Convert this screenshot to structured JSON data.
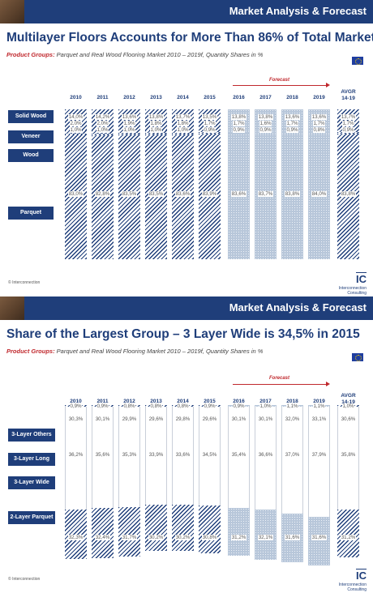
{
  "slide1": {
    "header": "Market Analysis & Forecast",
    "title": "Multilayer Floors Accounts for More Than 86% of Total Market",
    "subtitle_label": "Product Groups:",
    "subtitle_text": " Parquet and Real Wood Flooring Market 2010 – 2019f, Quantity Shares in %",
    "forecast_label": "Forecast",
    "footer": "© Interconnection",
    "logo_mark": "IC",
    "logo_name": "Interconnection",
    "logo_sub": "Consulting"
  },
  "slide2": {
    "header": "Market Analysis & Forecast",
    "title": "Share of the Largest Group – 3 Layer Wide is 34,5% in 2015",
    "subtitle_label": "Product Groups:",
    "subtitle_text": " Parquet and Real Wood Flooring Market 2010 – 2019f, Quantity Shares in %",
    "forecast_label": "Forecast",
    "footer": "© Interconnection",
    "logo_mark": "IC",
    "logo_name": "Interconnection",
    "logo_sub": "Consulting"
  },
  "chart_data": [
    {
      "type": "bar",
      "stacked": true,
      "percent": true,
      "categories": [
        "2010",
        "2011",
        "2012",
        "2013",
        "2014",
        "2015",
        "2016",
        "2017",
        "2018",
        "2019",
        "AVGR 14-19"
      ],
      "forecast_from": "2016",
      "series": [
        {
          "name": "Solid Wood",
          "values": [
            14.0,
            14.2,
            13.6,
            13.8,
            13.7,
            13.5,
            13.8,
            13.8,
            13.6,
            13.6,
            13.7
          ],
          "labels": [
            "14,0%",
            "14,2%",
            "13,6%",
            "13,8%",
            "13,7%",
            "13,5%",
            "13,8%",
            "13,8%",
            "13,6%",
            "13,6%",
            "13,7%"
          ]
        },
        {
          "name": "Veneer",
          "values": [
            2.0,
            2.0,
            1.9,
            1.8,
            1.8,
            1.7,
            1.7,
            1.6,
            1.7,
            1.7,
            1.7
          ],
          "labels": [
            "2,0%",
            "2,0%",
            "1,9%",
            "1,8%",
            "1,8%",
            "1,7%",
            "1,7%",
            "1,6%",
            "1,7%",
            "1,7%",
            "1,7%"
          ]
        },
        {
          "name": "Wood",
          "values": [
            1.0,
            1.0,
            1.0,
            1.0,
            1.0,
            0.9,
            0.9,
            0.9,
            0.9,
            0.8,
            0.9
          ],
          "labels": [
            "1,0%",
            "1,0%",
            "1,0%",
            "1,0%",
            "1,0%",
            "0,9%",
            "0,9%",
            "0,9%",
            "0,9%",
            "0,8%",
            "0,9%"
          ]
        },
        {
          "name": "Parquet",
          "values": [
            83.0,
            82.8,
            83.5,
            83.5,
            83.6,
            83.9,
            83.6,
            83.7,
            83.8,
            84.0,
            83.8
          ],
          "labels": [
            "83,0%",
            "82,8%",
            "83,5%",
            "83,5%",
            "83,6%",
            "83,9%",
            "83,6%",
            "83,7%",
            "83,8%",
            "84,0%",
            "83,8%"
          ]
        }
      ]
    },
    {
      "type": "bar",
      "stacked": true,
      "percent": true,
      "categories": [
        "2010",
        "2011",
        "2012",
        "2013",
        "2014",
        "2015",
        "2016",
        "2017",
        "2018",
        "2019",
        "AVGR 14-19"
      ],
      "forecast_from": "2016",
      "series": [
        {
          "name": "3-Layer Others",
          "values": [
            0.9,
            0.9,
            0.8,
            0.8,
            0.8,
            0.9,
            0.9,
            1.0,
            1.1,
            1.1,
            1.0
          ],
          "labels": [
            "0,9%",
            "0,9%",
            "0,8%",
            "0,8%",
            "0,8%",
            "0,9%",
            "0,9%",
            "1,0%",
            "1,1%",
            "1,1%",
            "1,0%"
          ]
        },
        {
          "name": "3-Layer Long",
          "values": [
            30.3,
            30.1,
            29.9,
            29.6,
            29.8,
            29.6,
            30.1,
            30.1,
            32.0,
            33.1,
            30.6
          ],
          "labels": [
            "30,3%",
            "30,1%",
            "29,9%",
            "29,6%",
            "29,8%",
            "29,6%",
            "30,1%",
            "30,1%",
            "32,0%",
            "33,1%",
            "30,6%"
          ]
        },
        {
          "name": "3-Layer Wide",
          "values": [
            36.2,
            35.6,
            35.3,
            33.9,
            33.6,
            34.5,
            35.4,
            36.6,
            37.0,
            37.9,
            35.8
          ],
          "labels": [
            "36,2%",
            "35,6%",
            "35,3%",
            "33,9%",
            "33,6%",
            "34,5%",
            "35,4%",
            "36,6%",
            "37,0%",
            "37,9%",
            "35,8%"
          ]
        },
        {
          "name": "2-Layer Parquet",
          "values": [
            32.3,
            32.4,
            31.7,
            30.2,
            30.2,
            30.8,
            31.2,
            32.1,
            31.6,
            31.6,
            31.2
          ],
          "labels": [
            "32,3%",
            "32,4%",
            "31,7%",
            "30,2%",
            "30,2%",
            "30,8%",
            "31,2%",
            "32,1%",
            "31,6%",
            "31,6%",
            "31,2%"
          ]
        }
      ]
    }
  ],
  "palette": {
    "navy": "#1f3e7a",
    "forecast_red": "#c0282d",
    "forecast_fill": "#b8c7da"
  },
  "icons": [
    "eu-flag-icon",
    "ic-logo"
  ]
}
